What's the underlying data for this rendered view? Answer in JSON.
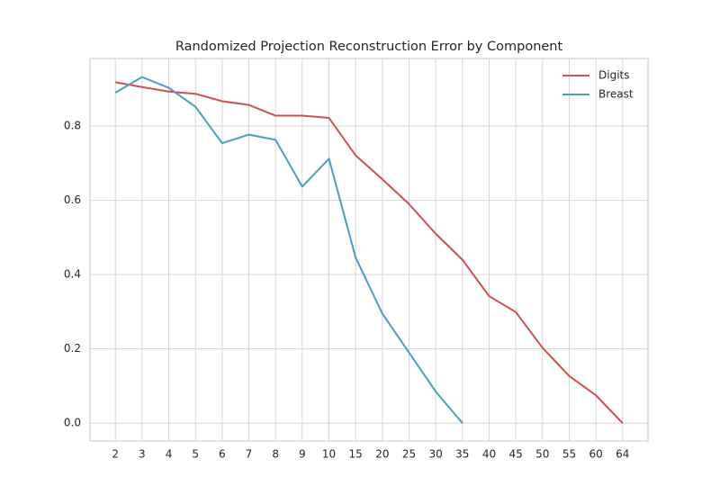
{
  "chart_data": {
    "type": "line",
    "title": "Randomized Projection Reconstruction Error by Component",
    "categories": [
      "2",
      "3",
      "4",
      "5",
      "6",
      "7",
      "8",
      "9",
      "10",
      "15",
      "20",
      "25",
      "30",
      "35",
      "40",
      "45",
      "50",
      "55",
      "60",
      "64"
    ],
    "series": [
      {
        "name": "Digits",
        "color": "#d0504a",
        "values": [
          0.918,
          0.905,
          0.893,
          0.887,
          0.867,
          0.857,
          0.828,
          0.828,
          0.822,
          0.721,
          0.657,
          0.59,
          0.51,
          0.44,
          0.342,
          0.299,
          0.203,
          0.127,
          0.075,
          0.0
        ]
      },
      {
        "name": "Breast",
        "color": "#4a9ec0",
        "values": [
          0.89,
          0.932,
          0.903,
          0.852,
          0.754,
          0.777,
          0.763,
          0.637,
          0.712,
          0.446,
          0.295,
          0.19,
          0.085,
          0.0,
          null,
          null,
          null,
          null,
          null,
          null
        ]
      }
    ],
    "ylim": [
      -0.048,
      0.982
    ],
    "yticks": [
      {
        "value": 0,
        "label": "0.0"
      },
      {
        "value": 0.2,
        "label": "0.2"
      },
      {
        "value": 0.4,
        "label": "0.4"
      },
      {
        "value": 0.6,
        "label": "0.6"
      },
      {
        "value": 0.8,
        "label": "0.8"
      }
    ],
    "grid": true,
    "legend": "upper right"
  }
}
